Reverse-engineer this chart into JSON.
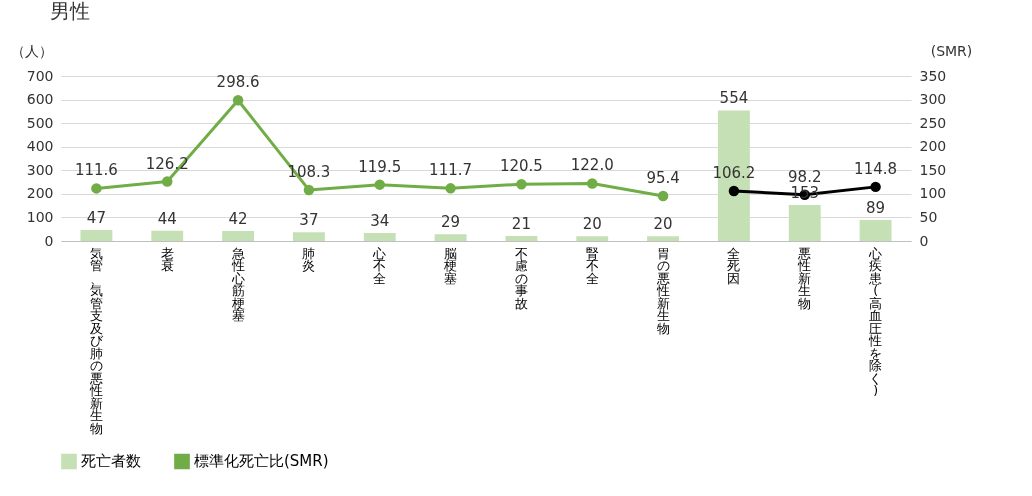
{
  "chart_data": {
    "type": "bar",
    "title": "男性",
    "ylabel": "（人）",
    "y2label": "(SMR)",
    "categories": [
      "気管、気管支及び肺の悪性新生物",
      "老衰",
      "急性心筋梗塞",
      "肺炎",
      "心不全",
      "脳梗塞",
      "不慮の事故",
      "腎不全",
      "胃の悪性新生物",
      "全死因",
      "悪性新生物",
      "心疾患(高血圧性を除く)"
    ],
    "series": [
      {
        "name": "死亡者数",
        "color": "#c5e0b4",
        "values": [
          47,
          44,
          42,
          37,
          34,
          29,
          21,
          20,
          20,
          554,
          153,
          89
        ],
        "value_labels": [
          "47",
          "44",
          "42",
          "37",
          "34",
          "29",
          "21",
          "20",
          "20",
          "554",
          "153",
          "89"
        ]
      },
      {
        "name": "標準化死亡比(SMR)",
        "type": "line",
        "axis": "y2",
        "color": "#70ad47",
        "values": [
          111.6,
          126.2,
          298.6,
          108.3,
          119.5,
          111.7,
          120.5,
          122.0,
          95.4,
          null,
          null,
          null
        ],
        "value_labels": [
          "111.6",
          "126.2",
          "298.6",
          "108.3",
          "119.5",
          "111.7",
          "120.5",
          "122.0",
          "95.4",
          null,
          null,
          null
        ]
      },
      {
        "type": "line",
        "axis": "y2",
        "color": "#000000",
        "values": [
          null,
          null,
          null,
          null,
          null,
          null,
          null,
          null,
          null,
          106.2,
          98.2,
          114.8
        ],
        "value_labels": [
          null,
          null,
          null,
          null,
          null,
          null,
          null,
          null,
          null,
          "106.2",
          "98.2",
          "114.8"
        ]
      }
    ],
    "ylim": [
      0,
      700
    ],
    "yticks": [
      0,
      100,
      200,
      300,
      400,
      500,
      600,
      700
    ],
    "y2lim": [
      0,
      350
    ],
    "y2ticks": [
      0,
      50,
      100,
      150,
      200,
      250,
      300,
      350
    ],
    "grid": "y",
    "legend": "bottom",
    "marker": "circle",
    "line_style": "solid"
  }
}
